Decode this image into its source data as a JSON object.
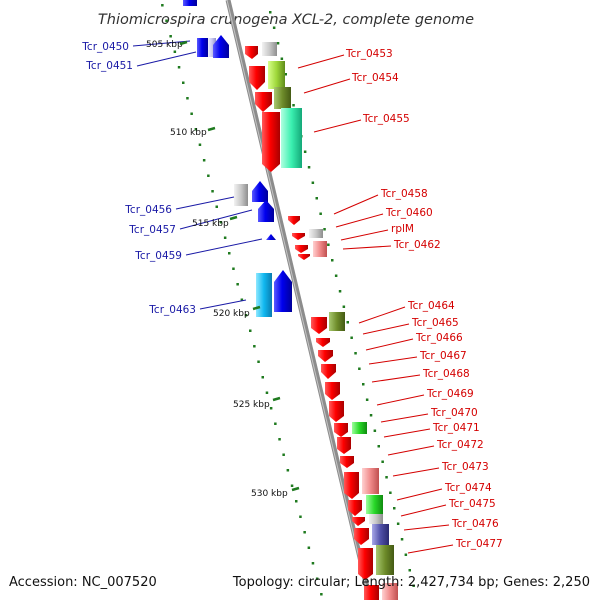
{
  "title": "Thiomicrospira crunogena XCL-2, complete genome",
  "footer": {
    "accession": "Accession: NC_007520",
    "summary": "Topology: circular; Length: 2,427,734 bp; Genes: 2,250"
  },
  "colors": {
    "backbone": "#8c8c8c",
    "left_labels": "#1a1aa6",
    "right_labels": "#d40000",
    "ticks": "#1f7a1f"
  },
  "ticks": [
    {
      "label": "505 kbp"
    },
    {
      "label": "510 kbp"
    },
    {
      "label": "515 kbp"
    },
    {
      "label": "520 kbp"
    },
    {
      "label": "525 kbp"
    },
    {
      "label": "530 kbp"
    }
  ],
  "left_genes": [
    {
      "label": "Tcr_0450"
    },
    {
      "label": "Tcr_0451"
    },
    {
      "label": "Tcr_0456"
    },
    {
      "label": "Tcr_0457"
    },
    {
      "label": "Tcr_0459"
    },
    {
      "label": "Tcr_0463"
    }
  ],
  "right_genes": [
    {
      "label": "Tcr_0453"
    },
    {
      "label": "Tcr_0454"
    },
    {
      "label": "Tcr_0455"
    },
    {
      "label": "Tcr_0458"
    },
    {
      "label": "Tcr_0460"
    },
    {
      "label": "rplM"
    },
    {
      "label": "Tcr_0462"
    },
    {
      "label": "Tcr_0464"
    },
    {
      "label": "Tcr_0465"
    },
    {
      "label": "Tcr_0466"
    },
    {
      "label": "Tcr_0467"
    },
    {
      "label": "Tcr_0468"
    },
    {
      "label": "Tcr_0469"
    },
    {
      "label": "Tcr_0470"
    },
    {
      "label": "Tcr_0471"
    },
    {
      "label": "Tcr_0472"
    },
    {
      "label": "Tcr_0473"
    },
    {
      "label": "Tcr_0474"
    },
    {
      "label": "Tcr_0475"
    },
    {
      "label": "Tcr_0476"
    },
    {
      "label": "Tcr_0477"
    }
  ]
}
